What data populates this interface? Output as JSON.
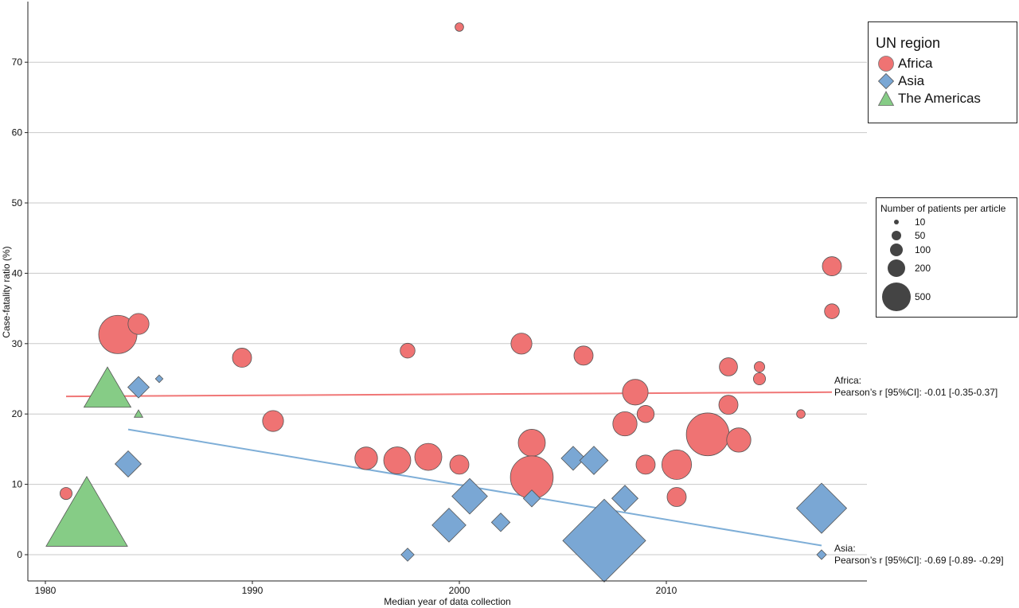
{
  "chart_data": {
    "type": "scatter",
    "xlabel": "Median year of data collection",
    "ylabel": "Case-fatality ratio (%)",
    "xlim": [
      1979,
      2020
    ],
    "ylim": [
      -4,
      79
    ],
    "xticks": [
      1980,
      1990,
      2000,
      2010
    ],
    "yticks": [
      0,
      10,
      20,
      30,
      40,
      50,
      60,
      70
    ],
    "grid": "horizontal major",
    "colors": {
      "Africa": "#EF7373",
      "Asia": "#7AA7D4",
      "The Americas": "#86CC86"
    },
    "legend_region": {
      "title": "UN region",
      "items": [
        {
          "label": "Africa",
          "shape": "circle",
          "color": "#EF7373"
        },
        {
          "label": "Asia",
          "shape": "diamond",
          "color": "#7AA7D4"
        },
        {
          "label": "The Americas",
          "shape": "triangle",
          "color": "#86CC86"
        }
      ],
      "placement": "top-right"
    },
    "legend_size": {
      "title": "Number of patients per article",
      "items": [
        {
          "label": "10",
          "n": 10
        },
        {
          "label": "50",
          "n": 50
        },
        {
          "label": "100",
          "n": 100
        },
        {
          "label": "200",
          "n": 200
        },
        {
          "label": "500",
          "n": 500
        }
      ],
      "placement": "right"
    },
    "series": [
      {
        "name": "Africa",
        "shape": "circle",
        "color": "#EF7373",
        "points": [
          {
            "x": 1981.0,
            "y": 8.7,
            "n": 20
          },
          {
            "x": 1983.5,
            "y": 31.3,
            "n": 200
          },
          {
            "x": 1984.5,
            "y": 32.8,
            "n": 60
          },
          {
            "x": 1989.5,
            "y": 28.0,
            "n": 50
          },
          {
            "x": 1991.0,
            "y": 19.0,
            "n": 60
          },
          {
            "x": 1995.5,
            "y": 13.7,
            "n": 70
          },
          {
            "x": 1997.0,
            "y": 13.4,
            "n": 100
          },
          {
            "x": 1997.5,
            "y": 29.0,
            "n": 30
          },
          {
            "x": 1998.5,
            "y": 13.9,
            "n": 100
          },
          {
            "x": 2000.0,
            "y": 12.8,
            "n": 50
          },
          {
            "x": 2000.0,
            "y": 75.0,
            "n": 10
          },
          {
            "x": 2003.0,
            "y": 30.0,
            "n": 60
          },
          {
            "x": 2003.5,
            "y": 15.9,
            "n": 100
          },
          {
            "x": 2003.5,
            "y": 11.0,
            "n": 250
          },
          {
            "x": 2006.0,
            "y": 28.3,
            "n": 50
          },
          {
            "x": 2008.0,
            "y": 18.6,
            "n": 80
          },
          {
            "x": 2008.5,
            "y": 23.1,
            "n": 90
          },
          {
            "x": 2009.0,
            "y": 20.0,
            "n": 40
          },
          {
            "x": 2009.0,
            "y": 12.8,
            "n": 50
          },
          {
            "x": 2010.5,
            "y": 12.8,
            "n": 120
          },
          {
            "x": 2010.5,
            "y": 8.2,
            "n": 50
          },
          {
            "x": 2012.0,
            "y": 17.1,
            "n": 250
          },
          {
            "x": 2013.0,
            "y": 26.7,
            "n": 45
          },
          {
            "x": 2013.0,
            "y": 21.3,
            "n": 50
          },
          {
            "x": 2013.5,
            "y": 16.3,
            "n": 80
          },
          {
            "x": 2014.5,
            "y": 26.7,
            "n": 15
          },
          {
            "x": 2014.5,
            "y": 25.0,
            "n": 20
          },
          {
            "x": 2016.5,
            "y": 20.0,
            "n": 10
          },
          {
            "x": 2018.0,
            "y": 41.0,
            "n": 50
          },
          {
            "x": 2018.0,
            "y": 34.6,
            "n": 30
          }
        ]
      },
      {
        "name": "Asia",
        "shape": "diamond",
        "color": "#7AA7D4",
        "points": [
          {
            "x": 1984.0,
            "y": 12.9,
            "n": 60
          },
          {
            "x": 1984.5,
            "y": 23.8,
            "n": 40
          },
          {
            "x": 1985.5,
            "y": 25.0,
            "n": 5
          },
          {
            "x": 1997.5,
            "y": 0.0,
            "n": 15
          },
          {
            "x": 1999.5,
            "y": 4.2,
            "n": 100
          },
          {
            "x": 2000.5,
            "y": 8.3,
            "n": 110
          },
          {
            "x": 2002.0,
            "y": 4.6,
            "n": 30
          },
          {
            "x": 2003.5,
            "y": 8.0,
            "n": 25
          },
          {
            "x": 2005.5,
            "y": 13.7,
            "n": 50
          },
          {
            "x": 2006.5,
            "y": 13.4,
            "n": 70
          },
          {
            "x": 2007.0,
            "y": 2.0,
            "n": 600
          },
          {
            "x": 2008.0,
            "y": 8.0,
            "n": 60
          },
          {
            "x": 2017.5,
            "y": 6.6,
            "n": 220
          },
          {
            "x": 2017.5,
            "y": 0.0,
            "n": 8
          }
        ]
      },
      {
        "name": "The Americas",
        "shape": "triangle",
        "color": "#86CC86",
        "points": [
          {
            "x": 1982.0,
            "y": 5.6,
            "n": 450
          },
          {
            "x": 1983.0,
            "y": 23.5,
            "n": 150
          },
          {
            "x": 1984.5,
            "y": 20.0,
            "n": 5
          }
        ]
      }
    ],
    "trendlines": [
      {
        "series": "Africa",
        "color": "#F07777",
        "x": [
          1981,
          2018
        ],
        "y": [
          22.5,
          23.1
        ]
      },
      {
        "series": "Asia",
        "color": "#7EAED7",
        "x": [
          1984,
          2017.5
        ],
        "y": [
          17.8,
          1.3
        ]
      }
    ],
    "annotations": [
      {
        "series": "Africa",
        "line1": "Africa:",
        "line2": "Pearson’s r [95%CI]: -0.01 [-0.35-0.37]"
      },
      {
        "series": "Asia",
        "line1": "Asia:",
        "line2": "Pearson’s r [95%CI]: -0.69 [-0.89- -0.29]"
      }
    ]
  }
}
